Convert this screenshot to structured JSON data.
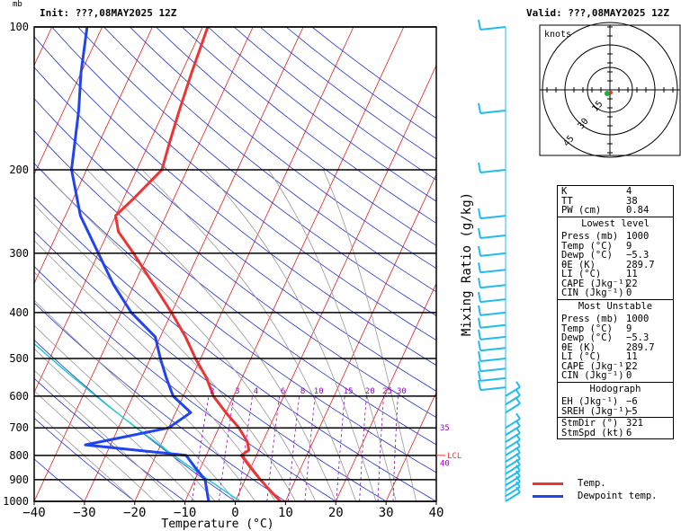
{
  "header": {
    "pressure_unit": "mb",
    "init": "Init: ???,08MAY2025 12Z",
    "valid": "Valid: ???,08MAY2025 12Z"
  },
  "chart_data": {
    "type": "line",
    "xlabel": "Temperature (°C)",
    "ylabel": "Mixing Ratio (g/kg)",
    "x_ticks": [
      -40,
      -30,
      -20,
      -10,
      0,
      10,
      20,
      30,
      40
    ],
    "pressure_levels": [
      100,
      200,
      300,
      400,
      500,
      600,
      700,
      800,
      900,
      1000
    ],
    "pressure_axis": "log",
    "xlim": [
      -40,
      40
    ],
    "ylim": [
      1000,
      100
    ],
    "mixing_ratio_labels": [
      "2",
      "3",
      "4",
      "6",
      "8",
      "10",
      "15",
      "20",
      "25",
      "30"
    ],
    "side_labels": [
      "35",
      "40",
      "LCL"
    ],
    "series": [
      {
        "name": "Temp.",
        "color": "#ee3333",
        "points": [
          {
            "p": 1000,
            "t": 9
          },
          {
            "p": 950,
            "t": 6
          },
          {
            "p": 900,
            "t": 3
          },
          {
            "p": 850,
            "t": 0
          },
          {
            "p": 800,
            "t": -3
          },
          {
            "p": 780,
            "t": -2
          },
          {
            "p": 750,
            "t": -3
          },
          {
            "p": 700,
            "t": -6
          },
          {
            "p": 650,
            "t": -10
          },
          {
            "p": 600,
            "t": -14
          },
          {
            "p": 550,
            "t": -17
          },
          {
            "p": 500,
            "t": -21
          },
          {
            "p": 450,
            "t": -25
          },
          {
            "p": 400,
            "t": -30
          },
          {
            "p": 350,
            "t": -36
          },
          {
            "p": 300,
            "t": -43
          },
          {
            "p": 270,
            "t": -48
          },
          {
            "p": 250,
            "t": -50
          },
          {
            "p": 230,
            "t": -48
          },
          {
            "p": 200,
            "t": -45
          },
          {
            "p": 175,
            "t": -46
          },
          {
            "p": 150,
            "t": -47
          },
          {
            "p": 125,
            "t": -48
          },
          {
            "p": 100,
            "t": -49
          }
        ]
      },
      {
        "name": "Dewpoint temp.",
        "color": "#2244ee",
        "points": [
          {
            "p": 1000,
            "t": -5.3
          },
          {
            "p": 900,
            "t": -8
          },
          {
            "p": 850,
            "t": -11
          },
          {
            "p": 800,
            "t": -14
          },
          {
            "p": 760,
            "t": -35
          },
          {
            "p": 700,
            "t": -20
          },
          {
            "p": 650,
            "t": -17
          },
          {
            "p": 600,
            "t": -22
          },
          {
            "p": 550,
            "t": -25
          },
          {
            "p": 500,
            "t": -28
          },
          {
            "p": 450,
            "t": -31
          },
          {
            "p": 400,
            "t": -38
          },
          {
            "p": 350,
            "t": -44
          },
          {
            "p": 300,
            "t": -50
          },
          {
            "p": 250,
            "t": -57
          },
          {
            "p": 200,
            "t": -63
          },
          {
            "p": 150,
            "t": -67
          },
          {
            "p": 125,
            "t": -70
          },
          {
            "p": 100,
            "t": -73
          }
        ]
      }
    ],
    "legend": [
      "Temp.",
      "Dewpoint temp."
    ],
    "hodograph": {
      "unit": "knots",
      "ring_labels": [
        "15",
        "30",
        "45"
      ]
    }
  },
  "indices": {
    "k": {
      "label": "K",
      "value": "4"
    },
    "tt": {
      "label": "TT",
      "value": "38"
    },
    "pw": {
      "label": "PW (cm)",
      "value": "0.84"
    }
  },
  "lowest_level": {
    "title": "Lowest level",
    "rows": [
      {
        "label": "Press (mb)",
        "value": "1000"
      },
      {
        "label": "Temp (°C)",
        "value": "9"
      },
      {
        "label": "Dewp (°C)",
        "value": "−5.3"
      },
      {
        "label": "θE (K)",
        "value": "289.7"
      },
      {
        "label": "LI (°C)",
        "value": "11"
      },
      {
        "label": "CAPE (Jkg⁻¹)",
        "value": "22"
      },
      {
        "label": "CIN (Jkg⁻¹)",
        "value": "0"
      }
    ]
  },
  "most_unstable": {
    "title": "Most Unstable",
    "rows": [
      {
        "label": "Press (mb)",
        "value": "1000"
      },
      {
        "label": "Temp (°C)",
        "value": "9"
      },
      {
        "label": "Dewp (°C)",
        "value": "−5.3"
      },
      {
        "label": "θE (K)",
        "value": "289.7"
      },
      {
        "label": "LI (°C)",
        "value": "11"
      },
      {
        "label": "CAPE (Jkg⁻¹)",
        "value": "22"
      },
      {
        "label": "CIN (Jkg⁻¹)",
        "value": "0"
      }
    ]
  },
  "hodograph_table": {
    "title": "Hodograph",
    "rows": [
      {
        "label": "EH (Jkg⁻¹)",
        "value": "−6"
      },
      {
        "label": "SREH (Jkg⁻¹)",
        "value": "−5"
      }
    ]
  },
  "storm": {
    "rows": [
      {
        "label": "StmDir (°)",
        "value": "321"
      },
      {
        "label": "StmSpd (kt)",
        "value": "6"
      }
    ]
  },
  "colors": {
    "temp": "#ee3333",
    "dewpoint": "#2244ee",
    "isotherm": "#dd2222",
    "dry_adiabat": "#2233cc",
    "moist_adiabat": "#999999",
    "mixing_ratio": "#9900cc",
    "cyan": "#22cccc",
    "barb": "#22bbee"
  }
}
